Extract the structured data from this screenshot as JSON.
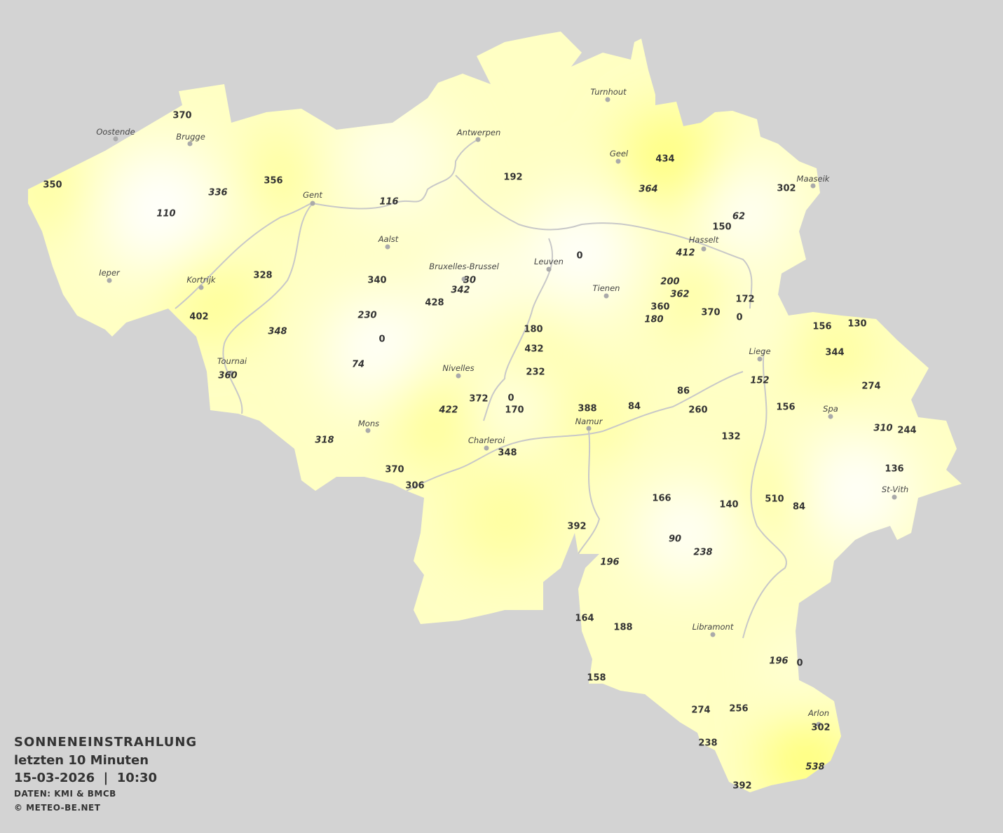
{
  "legend": {
    "title": "SONNENEINSTRAHLUNG",
    "period": "letzten 10 Minuten",
    "datetime": "15-03-2026  |  10:30",
    "source": "DATEN: KMI & BMCB",
    "copyright": "© METEO-BE.NET"
  },
  "colors": {
    "background": "#d3d3d3",
    "low": "#ffffff",
    "high": "#ffff66",
    "borders": "#c8c8c8",
    "text": "#333333"
  },
  "cities": [
    "Oostende",
    "Brugge",
    "Gent",
    "Antwerpen",
    "Turnhout",
    "Geel",
    "Maaseik",
    "Hasselt",
    "Leuven",
    "Aalst",
    "Bruxelles-Brussel",
    "Tienen",
    "Ieper",
    "Kortrijk",
    "Liege",
    "Tournai",
    "Nivelles",
    "Spa",
    "Namur",
    "Mons",
    "Charleroi",
    "St-Vith",
    "Libramont",
    "Arlon"
  ],
  "stations": [
    {
      "v": "370"
    },
    {
      "v": "350"
    },
    {
      "v": "336",
      "italic": true
    },
    {
      "v": "356"
    },
    {
      "v": "110",
      "italic": true
    },
    {
      "v": "116",
      "italic": true
    },
    {
      "v": "192"
    },
    {
      "v": "434"
    },
    {
      "v": "364",
      "italic": true
    },
    {
      "v": "302"
    },
    {
      "v": "62",
      "italic": true
    },
    {
      "v": "150"
    },
    {
      "v": "412",
      "italic": true
    },
    {
      "v": "0"
    },
    {
      "v": "328"
    },
    {
      "v": "340"
    },
    {
      "v": "30",
      "italic": true
    },
    {
      "v": "342",
      "italic": true
    },
    {
      "v": "428"
    },
    {
      "v": "402"
    },
    {
      "v": "230",
      "italic": true
    },
    {
      "v": "348",
      "italic": true
    },
    {
      "v": "200",
      "italic": true
    },
    {
      "v": "362",
      "italic": true
    },
    {
      "v": "360"
    },
    {
      "v": "180",
      "italic": true
    },
    {
      "v": "370"
    },
    {
      "v": "172"
    },
    {
      "v": "0"
    },
    {
      "v": "180"
    },
    {
      "v": "432"
    },
    {
      "v": "0"
    },
    {
      "v": "74",
      "italic": true
    },
    {
      "v": "156"
    },
    {
      "v": "130"
    },
    {
      "v": "344"
    },
    {
      "v": "232"
    },
    {
      "v": "360",
      "italic": true
    },
    {
      "v": "152",
      "italic": true
    },
    {
      "v": "274"
    },
    {
      "v": "86"
    },
    {
      "v": "372"
    },
    {
      "v": "0"
    },
    {
      "v": "170"
    },
    {
      "v": "422",
      "italic": true
    },
    {
      "v": "388"
    },
    {
      "v": "84"
    },
    {
      "v": "260"
    },
    {
      "v": "156"
    },
    {
      "v": "310",
      "italic": true
    },
    {
      "v": "244"
    },
    {
      "v": "132"
    },
    {
      "v": "318",
      "italic": true
    },
    {
      "v": "348"
    },
    {
      "v": "370"
    },
    {
      "v": "306"
    },
    {
      "v": "136"
    },
    {
      "v": "166"
    },
    {
      "v": "140"
    },
    {
      "v": "510"
    },
    {
      "v": "84"
    },
    {
      "v": "392"
    },
    {
      "v": "90",
      "italic": true
    },
    {
      "v": "238",
      "italic": true
    },
    {
      "v": "196",
      "italic": true
    },
    {
      "v": "164"
    },
    {
      "v": "188"
    },
    {
      "v": "196",
      "italic": true
    },
    {
      "v": "0"
    },
    {
      "v": "158"
    },
    {
      "v": "274"
    },
    {
      "v": "256"
    },
    {
      "v": "302"
    },
    {
      "v": "538",
      "italic": true
    },
    {
      "v": "238"
    },
    {
      "v": "392"
    }
  ]
}
